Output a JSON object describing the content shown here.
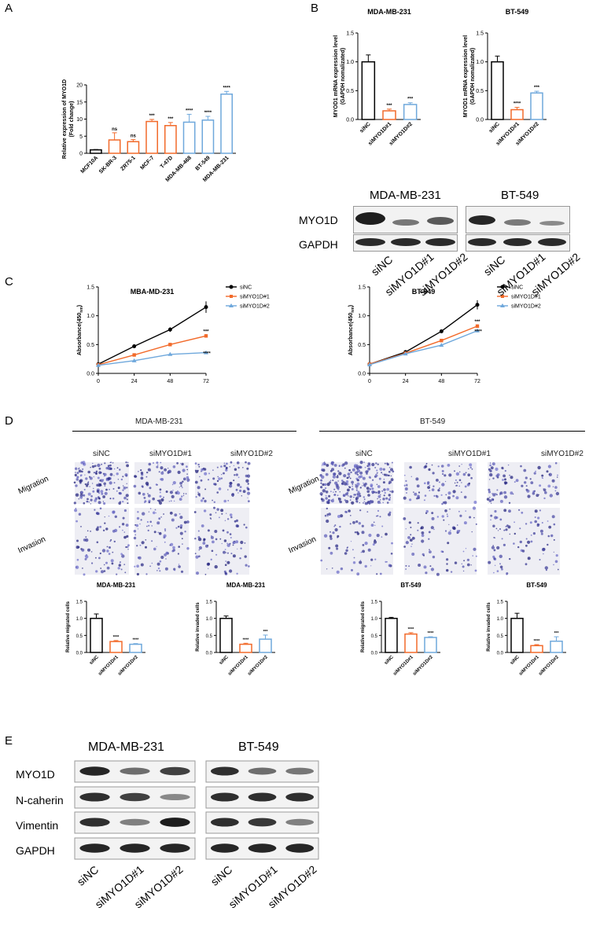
{
  "panel_labels": {
    "A": "A",
    "B": "B",
    "C": "C",
    "D": "D",
    "E": "E"
  },
  "colors": {
    "black": "#000000",
    "orange": "#f26a2a",
    "blue": "#6fa8dc"
  },
  "panelB": {
    "blot_cells": [
      "MDA-MB-231",
      "BT-549"
    ],
    "blot_rows": [
      "MYO1D",
      "GAPDH"
    ],
    "blot_lanes": [
      "siNC",
      "siMYO1D#1",
      "siMYO1D#2"
    ]
  },
  "panelD": {
    "groups": [
      "MDA-MB-231",
      "BT-549"
    ],
    "columns": [
      "siNC",
      "siMYO1D#1",
      "siMYO1D#2"
    ],
    "rows": [
      "Migration",
      "Invasion"
    ]
  },
  "panelE": {
    "cells": [
      "MDA-MB-231",
      "BT-549"
    ],
    "rows": [
      "MYO1D",
      "N-caherin",
      "Vimentin",
      "GAPDH"
    ],
    "lanes": [
      "siNC",
      "siMYO1D#1",
      "siMYO1D#2"
    ]
  },
  "chart_data": [
    {
      "id": "A",
      "type": "bar",
      "title": "",
      "ylabel": "Relative expression of MYO1D (Fold change)",
      "ylim": [
        0,
        20
      ],
      "yticks": [
        0,
        5,
        10,
        15,
        20
      ],
      "categories": [
        "MCF10A",
        "SK-BR-3",
        "ZR75-1",
        "MCF-7",
        "T-47D",
        "MDA-MB-468",
        "BT-549",
        "MDA-MB-231"
      ],
      "values": [
        1.0,
        3.9,
        3.4,
        9.3,
        8.1,
        9.1,
        9.7,
        17.3
      ],
      "errors": [
        0.1,
        2.1,
        0.6,
        0.6,
        0.9,
        2.3,
        1.1,
        0.8
      ],
      "colors": [
        "black",
        "orange",
        "orange",
        "orange",
        "orange",
        "blue",
        "blue",
        "blue"
      ],
      "sig": [
        "",
        "ns",
        "ns",
        "***",
        "***",
        "****",
        "****",
        "****"
      ]
    },
    {
      "id": "B1",
      "type": "bar",
      "title": "MDA-MB-231",
      "ylabel": "MYOD1 mRNA expression level (GAPDH nomalizated)",
      "ylim": [
        0,
        1.5
      ],
      "yticks": [
        "0.0",
        "0.5",
        "1.0",
        "1.5"
      ],
      "categories": [
        "siNC",
        "siMYO1D#1",
        "siMYO1D#2"
      ],
      "values": [
        1.0,
        0.15,
        0.26
      ],
      "errors": [
        0.12,
        0.03,
        0.03
      ],
      "colors": [
        "black",
        "orange",
        "blue"
      ],
      "sig": [
        "",
        "***",
        "***"
      ]
    },
    {
      "id": "B2",
      "type": "bar",
      "title": "BT-549",
      "ylabel": "MYOD1 mRNA expression level (GAPDH nomalizated)",
      "ylim": [
        0,
        1.5
      ],
      "yticks": [
        "0.0",
        "0.5",
        "1.0",
        "1.5"
      ],
      "categories": [
        "siNC",
        "siMYO1D#1",
        "siMYO1D#2"
      ],
      "values": [
        1.0,
        0.17,
        0.46
      ],
      "errors": [
        0.1,
        0.04,
        0.03
      ],
      "colors": [
        "black",
        "orange",
        "blue"
      ],
      "sig": [
        "",
        "****",
        "***"
      ]
    },
    {
      "id": "C1",
      "type": "line",
      "title": "MBA-MD-231",
      "ylabel": "Absorbance(450nm)",
      "ylim": [
        0,
        1.5
      ],
      "yticks": [
        "0.0",
        "0.5",
        "1.0",
        "1.5"
      ],
      "x": [
        0,
        24,
        48,
        72
      ],
      "series": [
        {
          "name": "siNC",
          "color": "black",
          "values": [
            0.16,
            0.47,
            0.76,
            1.15
          ],
          "errors": [
            0.01,
            0.01,
            0.04,
            0.1
          ]
        },
        {
          "name": "siMYO1D#1",
          "color": "orange",
          "values": [
            0.15,
            0.32,
            0.5,
            0.65
          ],
          "errors": [
            0.01,
            0.01,
            0.02,
            0.03
          ]
        },
        {
          "name": "siMYO1D#2",
          "color": "blue",
          "values": [
            0.14,
            0.22,
            0.33,
            0.36
          ],
          "errors": [
            0.01,
            0.01,
            0.02,
            0.02
          ]
        }
      ],
      "sig": [
        "***",
        "****"
      ]
    },
    {
      "id": "C2",
      "type": "line",
      "title": "BT-549",
      "ylabel": "Absorbance(450nm)",
      "ylim": [
        0,
        1.5
      ],
      "yticks": [
        "0.0",
        "0.5",
        "1.0",
        "1.5"
      ],
      "x": [
        0,
        24,
        48,
        72
      ],
      "series": [
        {
          "name": "siNC",
          "color": "black",
          "values": [
            0.16,
            0.37,
            0.73,
            1.19
          ],
          "errors": [
            0.01,
            0.01,
            0.02,
            0.08
          ]
        },
        {
          "name": "siMYO1D#1",
          "color": "orange",
          "values": [
            0.16,
            0.35,
            0.57,
            0.82
          ],
          "errors": [
            0.01,
            0.01,
            0.02,
            0.03
          ]
        },
        {
          "name": "siMYO1D#2",
          "color": "blue",
          "values": [
            0.15,
            0.34,
            0.49,
            0.74
          ],
          "errors": [
            0.01,
            0.01,
            0.02,
            0.03
          ]
        }
      ],
      "sig": [
        "***",
        "****"
      ]
    },
    {
      "id": "D1",
      "type": "bar",
      "title": "MDA-MB-231",
      "ylabel": "Relative migrated cells",
      "ylim": [
        0,
        1.5
      ],
      "yticks": [
        "0.0",
        "0.5",
        "1.0",
        "1.5"
      ],
      "categories": [
        "siNC",
        "siMYO1D#1",
        "siMYO1D#2"
      ],
      "values": [
        1.0,
        0.32,
        0.24
      ],
      "errors": [
        0.13,
        0.03,
        0.02
      ],
      "colors": [
        "black",
        "orange",
        "blue"
      ],
      "sig": [
        "",
        "****",
        "****"
      ]
    },
    {
      "id": "D2",
      "type": "bar",
      "title": "MDA-MB-231",
      "ylabel": "Relative invaded cells",
      "ylim": [
        0,
        1.5
      ],
      "yticks": [
        "0.0",
        "0.5",
        "1.0",
        "1.5"
      ],
      "categories": [
        "siNC",
        "siMYO1D#1",
        "siMYO1D#2"
      ],
      "values": [
        1.0,
        0.24,
        0.39
      ],
      "errors": [
        0.07,
        0.03,
        0.12
      ],
      "colors": [
        "black",
        "orange",
        "blue"
      ],
      "sig": [
        "",
        "****",
        "***"
      ]
    },
    {
      "id": "D3",
      "type": "bar",
      "title": "BT-549",
      "ylabel": "Relative migrated cells",
      "ylim": [
        0,
        1.5
      ],
      "yticks": [
        "0.0",
        "0.5",
        "1.0",
        "1.5"
      ],
      "categories": [
        "siNC",
        "siMYO1D#1",
        "siMYO1D#2"
      ],
      "values": [
        1.0,
        0.54,
        0.44
      ],
      "errors": [
        0.03,
        0.04,
        0.02
      ],
      "colors": [
        "black",
        "orange",
        "blue"
      ],
      "sig": [
        "",
        "****",
        "****"
      ]
    },
    {
      "id": "D4",
      "type": "bar",
      "title": "BT-549",
      "ylabel": "Relative invaded cells",
      "ylim": [
        0,
        1.5
      ],
      "yticks": [
        "0.0",
        "0.5",
        "1.0",
        "1.5"
      ],
      "categories": [
        "siNC",
        "siMYO1D#1",
        "siMYO1D#2"
      ],
      "values": [
        1.0,
        0.2,
        0.33
      ],
      "errors": [
        0.15,
        0.03,
        0.13
      ],
      "colors": [
        "black",
        "orange",
        "blue"
      ],
      "sig": [
        "",
        "****",
        "***"
      ]
    }
  ]
}
